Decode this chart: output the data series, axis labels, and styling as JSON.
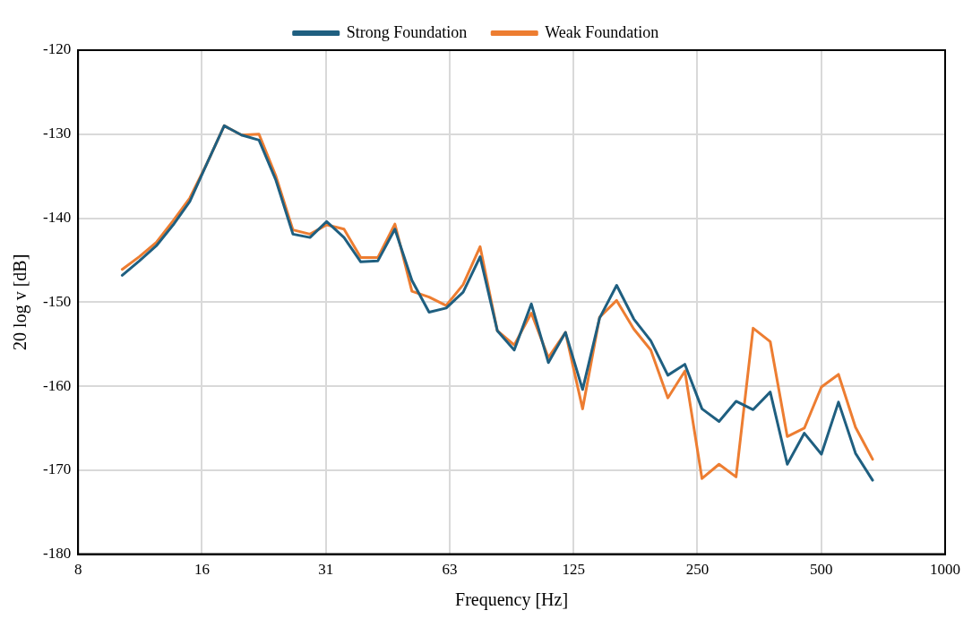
{
  "chart_data": {
    "type": "line",
    "xlabel": "Frequency [Hz]",
    "ylabel": "20 log v [dB]",
    "x": [
      10.0,
      11.0,
      12.1,
      13.3,
      14.6,
      16.1,
      17.7,
      19.5,
      21.5,
      23.6,
      26.0,
      28.6,
      31.4,
      34.6,
      38.0,
      41.8,
      46.0,
      50.6,
      55.7,
      61.3,
      67.4,
      74.1,
      81.6,
      89.7,
      98.7,
      108.6,
      119.5,
      131.5,
      144.6,
      159.1,
      175.1,
      192.6,
      211.9,
      233.1,
      256.5,
      282.2,
      310.4,
      341.5,
      375.8,
      413.4,
      454.8,
      500.4,
      550.6,
      605.7,
      666.4
    ],
    "series": [
      {
        "name": "Strong Foundation",
        "color": "#1f5f80",
        "values": [
          -146.8,
          -145.1,
          -143.3,
          -140.8,
          -138.0,
          -133.4,
          -129.0,
          -130.1,
          -130.7,
          -135.4,
          -141.9,
          -142.3,
          -140.4,
          -142.3,
          -145.2,
          -145.1,
          -141.3,
          -147.4,
          -151.2,
          -150.7,
          -148.8,
          -144.6,
          -153.4,
          -155.7,
          -150.2,
          -157.2,
          -153.6,
          -160.4,
          -151.9,
          -148.0,
          -152.0,
          -154.6,
          -158.7,
          -157.4,
          -162.7,
          -164.2,
          -161.8,
          -162.8,
          -160.7,
          -169.3,
          -165.6,
          -168.1,
          -161.9,
          -168.0,
          -171.2
        ]
      },
      {
        "name": "Weak Foundation",
        "color": "#ed7d31",
        "values": [
          -146.1,
          -144.6,
          -142.9,
          -140.3,
          -137.6,
          -133.4,
          -129.0,
          -130.1,
          -130.0,
          -134.9,
          -141.4,
          -141.9,
          -140.8,
          -141.3,
          -144.7,
          -144.7,
          -140.7,
          -148.7,
          -149.4,
          -150.4,
          -147.9,
          -143.4,
          -153.4,
          -155.1,
          -151.3,
          -156.6,
          -153.6,
          -162.7,
          -151.8,
          -149.8,
          -153.2,
          -155.7,
          -161.4,
          -158.2,
          -171.0,
          -169.3,
          -170.8,
          -153.1,
          -154.7,
          -166.0,
          -165.0,
          -160.1,
          -158.6,
          -164.9,
          -168.7
        ]
      }
    ],
    "log": "x",
    "xlim": [
      7.8125,
      1000
    ],
    "xticks": [
      {
        "value": 7.8125,
        "label": "8"
      },
      {
        "value": 15.625,
        "label": "16"
      },
      {
        "value": 31.25,
        "label": "31"
      },
      {
        "value": 62.5,
        "label": "63"
      },
      125,
      250,
      500,
      1000
    ],
    "ylim": [
      -180,
      -120
    ],
    "yticks": [
      -180,
      -170,
      -160,
      -150,
      -140,
      -130,
      -120
    ],
    "grid": true,
    "legend": "top",
    "marker": "none",
    "line_style": "solid"
  }
}
